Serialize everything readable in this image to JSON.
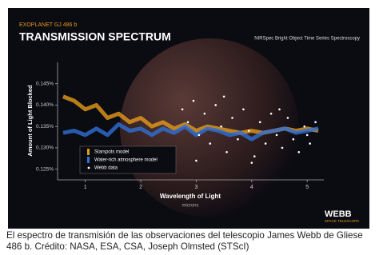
{
  "chart_data": {
    "type": "line",
    "kicker": "EXOPLANET GJ 486 b",
    "title": "TRANSMISSION SPECTRUM",
    "subtitle": "NIRSpec Bright Object Time Series Spectroscopy",
    "ylabel": "Amount of Light Blocked",
    "xlabel": "Wavelength of Light",
    "xunit": "microns",
    "logo": "WEBB",
    "logo_sub": "SPACE TELESCOPE",
    "xlim": [
      0.5,
      5.3
    ],
    "xticks": [
      1,
      2,
      3,
      4,
      5
    ],
    "ylim": [
      0.1225,
      0.15
    ],
    "yticks": [
      {
        "value": 0.125,
        "label": "0.125%"
      },
      {
        "value": 0.13,
        "label": "0.130%"
      },
      {
        "value": 0.135,
        "label": "0.135%"
      },
      {
        "value": 0.14,
        "label": "0.140%"
      },
      {
        "value": 0.145,
        "label": "0.145%"
      }
    ],
    "grid": false,
    "legend": "lower left",
    "x": [
      0.6,
      0.8,
      1.0,
      1.2,
      1.4,
      1.6,
      1.8,
      2.0,
      2.2,
      2.4,
      2.6,
      2.8,
      3.0,
      3.2,
      3.4,
      3.6,
      3.8,
      4.0,
      4.2,
      4.4,
      4.6,
      4.8,
      5.0,
      5.2
    ],
    "series": [
      {
        "name": "Starspots model",
        "color": "#e39a1c",
        "values": [
          0.142,
          0.141,
          0.139,
          0.14,
          0.137,
          0.138,
          0.136,
          0.137,
          0.135,
          0.136,
          0.1345,
          0.1355,
          0.134,
          0.135,
          0.1345,
          0.134,
          0.1335,
          0.134,
          0.1335,
          0.134,
          0.1345,
          0.134,
          0.1345,
          0.134
        ]
      },
      {
        "name": "Water-rich atmosphere model",
        "color": "#2f6fd6",
        "values": [
          0.1335,
          0.134,
          0.133,
          0.1345,
          0.133,
          0.1355,
          0.134,
          0.1345,
          0.133,
          0.1345,
          0.1335,
          0.135,
          0.133,
          0.1345,
          0.134,
          0.133,
          0.1335,
          0.132,
          0.1335,
          0.134,
          0.1345,
          0.1335,
          0.134,
          0.1345
        ]
      },
      {
        "name": "Webb data",
        "color": "#ffffff",
        "type": "scatter",
        "x": [
          2.75,
          2.85,
          2.95,
          3.05,
          3.15,
          3.25,
          3.35,
          3.45,
          3.55,
          3.65,
          3.75,
          3.85,
          3.95,
          4.05,
          4.15,
          4.25,
          4.35,
          4.45,
          4.55,
          4.65,
          4.75,
          4.85,
          4.95,
          5.05,
          5.15,
          3.0,
          3.5,
          4.0,
          4.5,
          5.0
        ],
        "values": [
          0.139,
          0.136,
          0.141,
          0.133,
          0.138,
          0.131,
          0.14,
          0.135,
          0.129,
          0.137,
          0.132,
          0.139,
          0.134,
          0.128,
          0.136,
          0.131,
          0.138,
          0.133,
          0.13,
          0.137,
          0.132,
          0.129,
          0.135,
          0.131,
          0.136,
          0.127,
          0.142,
          0.1265,
          0.139,
          0.133
        ]
      }
    ]
  },
  "caption": "El espectro de transmisión de las observaciones del telescopio James Webb de Gliese 486 b. Crédito: NASA, ESA, CSA, Joseph Olmsted (STScI)"
}
